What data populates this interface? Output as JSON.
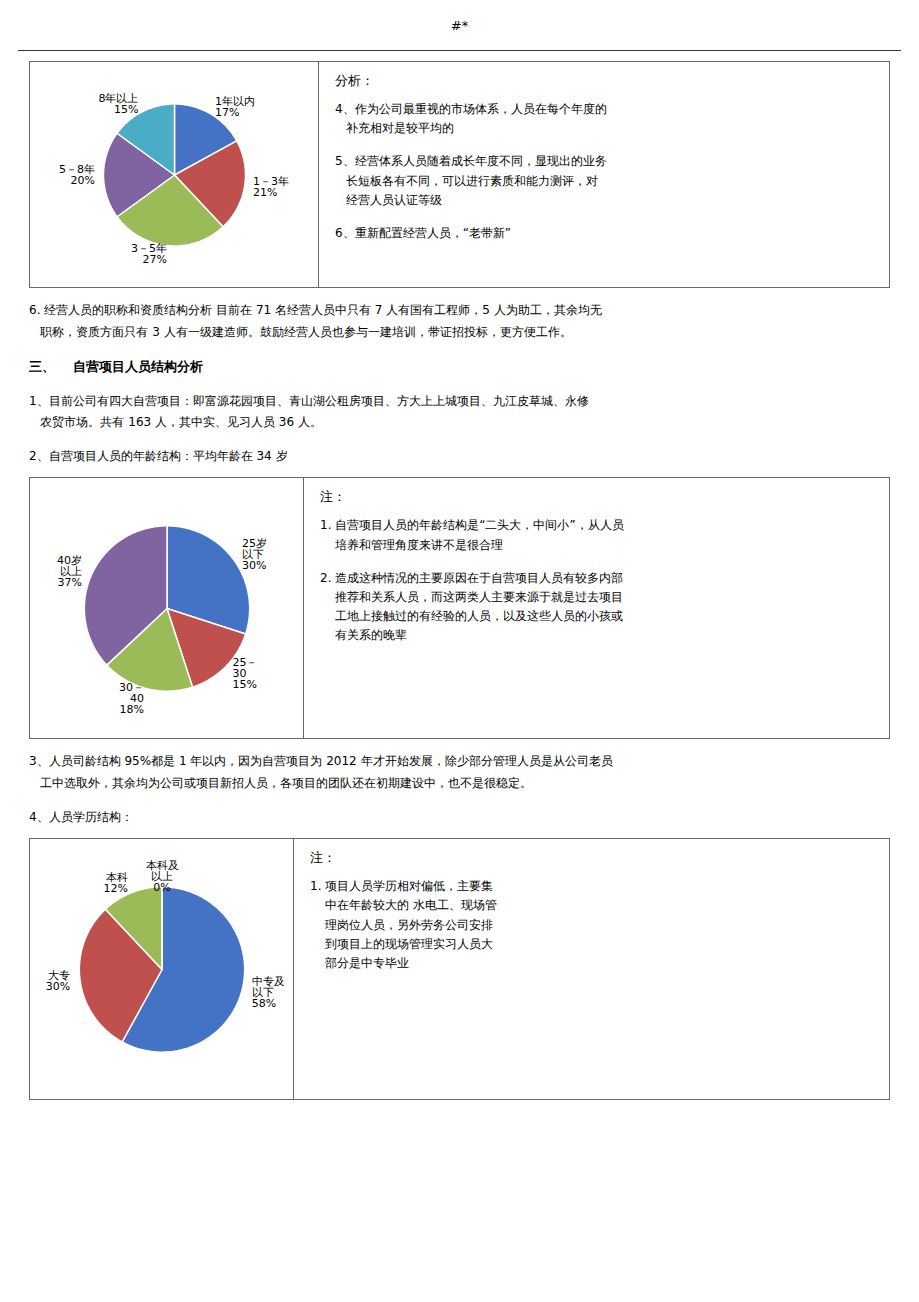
{
  "title": "#*",
  "annotations": [
    "6. 经营人员的职称和资质结构分析 目前在 71 名经营人员中只有 7 人有国有工程师，5 人为助工，其余均无\n   职称，资质方面只有 3 人有一级建造师。鼓励经营人员也参与一建培训，带证招投标，更方便工作。",
    "三、    自营项目人员结构分析",
    "1、目前公司有四大自营项目：即富源花园项目、青山湖公租房项目、方大上上城项目、九江皮草城、永修\n   农贸市场。共有 163 人，其中实、见习人员 36 人。",
    "2、自营项目人员的年龄结构：平均年龄在 34 岁",
    "3、人员司龄结构 95%都是 1 年以内，因为自营项目为 2012 年才开始发展，除少部分管理人员是从公司老员\n   工中选取外，其余均为公司或项目新招人员，各项目的团队还在初期建设中，也不是很稳定。",
    "4、人员学历结构："
  ],
  "chart_data": [
    {
      "type": "pie",
      "categories": [
        "1年以内",
        "1－3年",
        "3－5年",
        "5－8年",
        "8年以上"
      ],
      "values": [
        17,
        21,
        27,
        20,
        15
      ],
      "value_labels": [
        "17%",
        "21%",
        "27%",
        "20%",
        "15%"
      ],
      "colors": [
        "#4472C4",
        "#C0504D",
        "#9BBB59",
        "#8064A2",
        "#4BACC6"
      ],
      "data_labels": true,
      "annotations": [
        "分析：",
        "4、作为公司最重视的市场体系，人员在每个年度的\n   补充相对是较平均的",
        "5、经营体系人员随着成长年度不同，显现出的业务\n   长短板各有不同，可以进行素质和能力测评，对\n   经营人员认证等级",
        "6、重新配置经营人员，“老带新”"
      ]
    },
    {
      "type": "pie",
      "categories": [
        "25岁\n以下",
        "25－\n30",
        "30－\n40",
        "40岁\n以上"
      ],
      "values": [
        30,
        15,
        18,
        37
      ],
      "value_labels": [
        "30%",
        "15%",
        "18%",
        "37%"
      ],
      "colors": [
        "#4472C4",
        "#C0504D",
        "#9BBB59",
        "#8064A2"
      ],
      "data_labels": true,
      "annotations": [
        "注：",
        "1.\t自营项目人员的年龄结构是“二头大，中间小”，从人员\n\t培养和管理角度来讲不是很合理",
        "2.\t造成这种情况的主要原因在于自营项目人员有较多内部\n\t推荐和关系人员，而这两类人主要来源于就是过去项目\n\t工地上接触过的有经验的人员，以及这些人员的小孩或\n\t有关系的晚辈"
      ]
    },
    {
      "type": "pie",
      "categories": [
        "中专及\n以下",
        "大专",
        "本科",
        "本科及\n以上"
      ],
      "values": [
        58,
        30,
        12,
        0
      ],
      "value_labels": [
        "58%",
        "30%",
        "12%",
        "0%"
      ],
      "colors": [
        "#4472C4",
        "#C0504D",
        "#9BBB59",
        "#4BACC6"
      ],
      "data_labels": true,
      "annotations": [
        "注：",
        "1.\t项目人员学历相对偏低，主要集\n\t中在年龄较大的 水电工、现场管\n\t理岗位人员，另外劳务公司安排\n\t到项目上的现场管理实习人员大\n\t部分是中专毕业"
      ]
    }
  ]
}
